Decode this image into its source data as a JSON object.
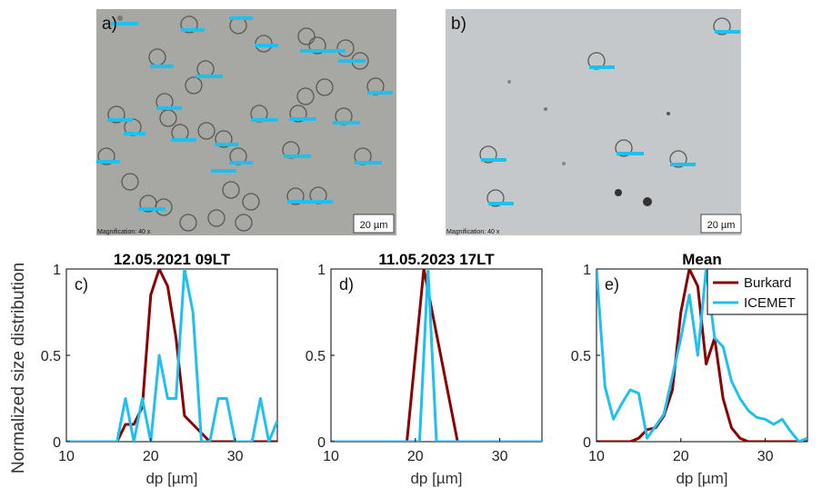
{
  "figure": {
    "shared_ylabel": "Normalized size distribution",
    "micrographs": [
      {
        "panel_label": "a)",
        "magnification": "Magnification:  40 x",
        "scale_bar": "20 µm"
      },
      {
        "panel_label": "b)",
        "magnification": "Magnification:  40 x",
        "scale_bar": "20 µm"
      }
    ],
    "colors": {
      "burkard": "#8b0000",
      "icemet": "#1ec0f0",
      "axis": "#000000"
    }
  },
  "chart_data": [
    {
      "type": "line",
      "panel_label": "c)",
      "title": "12.05.2021 09LT",
      "xlabel": "dp [µm]",
      "ylabel": "",
      "xlim": [
        10,
        35
      ],
      "ylim": [
        0,
        1
      ],
      "xticks": [
        10,
        20,
        30
      ],
      "yticks": [
        0,
        0.5,
        1
      ],
      "ytick_labels": [
        "0",
        "0.5",
        "1"
      ],
      "series": [
        {
          "key": "burkard",
          "x": [
            10,
            11,
            12,
            13,
            14,
            15,
            16,
            17,
            18,
            19,
            20,
            21,
            22,
            23,
            24,
            25,
            26,
            27,
            28,
            29,
            30,
            31,
            32,
            33,
            34,
            35
          ],
          "y": [
            0,
            0,
            0,
            0,
            0,
            0,
            0,
            0.1,
            0.1,
            0.2,
            0.85,
            1.0,
            0.9,
            0.6,
            0.15,
            0.1,
            0.05,
            0,
            0,
            0,
            0,
            0,
            0,
            0,
            0,
            0
          ]
        },
        {
          "key": "icemet",
          "x": [
            10,
            11,
            12,
            13,
            14,
            15,
            16,
            17,
            18,
            19,
            20,
            21,
            22,
            23,
            24,
            25,
            26,
            27,
            28,
            29,
            30,
            31,
            32,
            33,
            34,
            35
          ],
          "y": [
            0,
            0,
            0,
            0,
            0,
            0,
            0,
            0.25,
            0,
            0.25,
            0,
            0.5,
            0.25,
            0.25,
            1.0,
            0.75,
            0,
            0,
            0.25,
            0.25,
            0,
            0,
            0,
            0.25,
            0,
            0.12
          ]
        }
      ]
    },
    {
      "type": "line",
      "panel_label": "d)",
      "title": "11.05.2023 17LT",
      "xlabel": "dp [µm]",
      "ylabel": "",
      "xlim": [
        10,
        35
      ],
      "ylim": [
        0,
        1
      ],
      "xticks": [
        10,
        20,
        30
      ],
      "yticks": [
        0,
        0.5,
        1
      ],
      "ytick_labels": [
        "0",
        "0.5",
        "1"
      ],
      "series": [
        {
          "key": "burkard",
          "x": [
            10,
            19,
            21,
            25,
            35
          ],
          "y": [
            0,
            0,
            1,
            0,
            0
          ]
        },
        {
          "key": "icemet",
          "x": [
            10,
            20.5,
            21.5,
            22.5,
            35
          ],
          "y": [
            0,
            0,
            1,
            0,
            0
          ]
        }
      ]
    },
    {
      "type": "line",
      "panel_label": "e)",
      "title": "Mean",
      "xlabel": "dp [µm]",
      "ylabel": "",
      "xlim": [
        10,
        35
      ],
      "ylim": [
        0,
        1
      ],
      "xticks": [
        10,
        20,
        30
      ],
      "yticks": [
        0,
        0.5,
        1
      ],
      "ytick_labels": [
        "0",
        "0.5",
        "1"
      ],
      "legend": {
        "position": "top-right",
        "entries": [
          {
            "key": "burkard",
            "label": "Burkard"
          },
          {
            "key": "icemet",
            "label": "ICEMET"
          }
        ]
      },
      "series": [
        {
          "key": "burkard",
          "x": [
            10,
            11,
            12,
            13,
            14,
            15,
            16,
            17,
            18,
            19,
            20,
            21,
            22,
            23,
            24,
            25,
            26,
            27,
            28,
            29,
            30,
            31,
            32,
            33,
            34,
            35
          ],
          "y": [
            0,
            0,
            0,
            0,
            0,
            0.02,
            0.07,
            0.08,
            0.15,
            0.3,
            0.75,
            1.0,
            0.9,
            0.45,
            0.6,
            0.25,
            0.08,
            0.02,
            0,
            0,
            0,
            0,
            0,
            0,
            0,
            0
          ]
        },
        {
          "key": "icemet",
          "x": [
            10,
            11,
            12,
            13,
            14,
            15,
            16,
            17,
            18,
            19,
            20,
            21,
            22,
            23,
            24,
            25,
            26,
            27,
            28,
            29,
            30,
            31,
            32,
            33,
            34,
            35
          ],
          "y": [
            1.0,
            0.32,
            0.13,
            0.22,
            0.3,
            0.28,
            0.02,
            0.09,
            0.16,
            0.38,
            0.6,
            0.85,
            0.5,
            1.0,
            0.6,
            0.55,
            0.35,
            0.25,
            0.18,
            0.14,
            0.13,
            0.1,
            0.13,
            0.06,
            0,
            0.02
          ]
        }
      ]
    }
  ]
}
